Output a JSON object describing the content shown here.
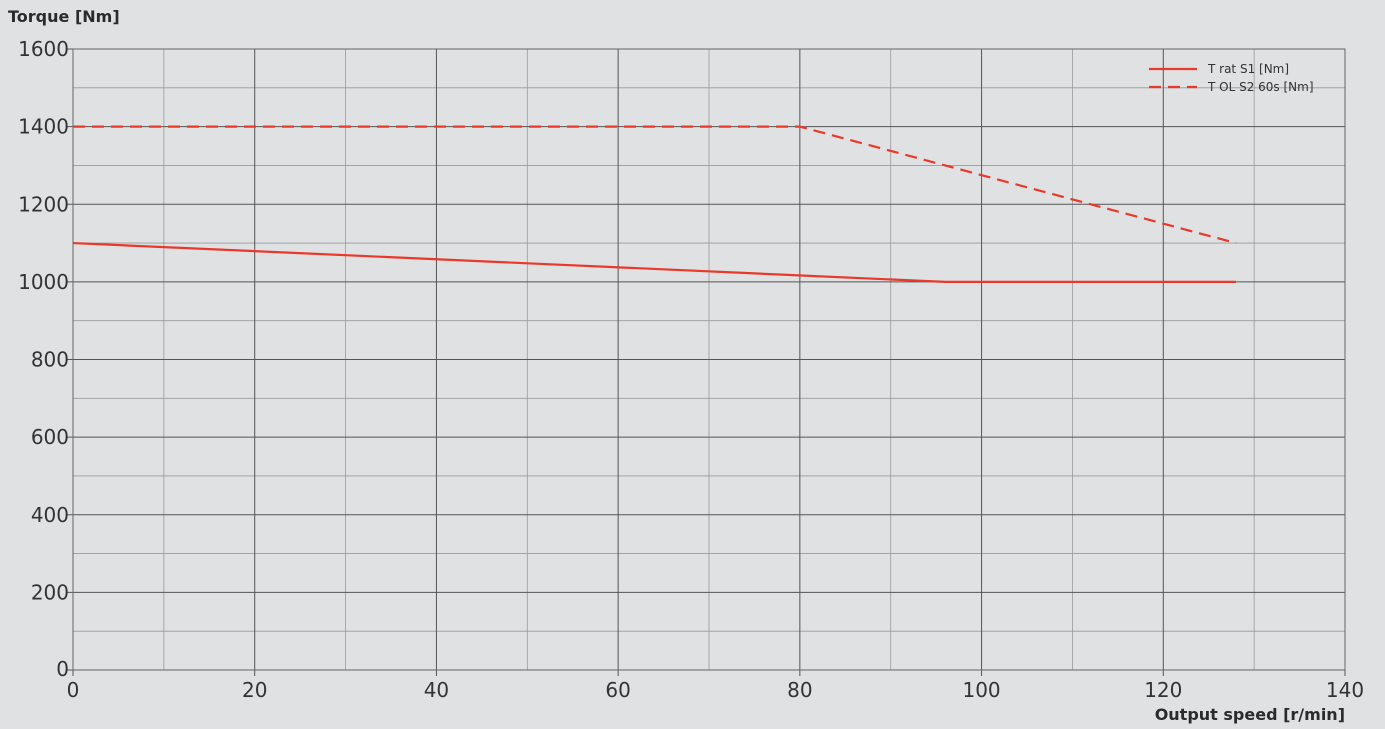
{
  "chart_data": {
    "type": "line",
    "title": "",
    "ylabel": "Torque [Nm]",
    "xlabel": "Output speed [r/min]",
    "xlim": [
      0,
      140
    ],
    "ylim": [
      0,
      1600
    ],
    "x_ticks": [
      0,
      20,
      40,
      60,
      80,
      100,
      120,
      140
    ],
    "y_ticks": [
      0,
      200,
      400,
      600,
      800,
      1000,
      1200,
      1400,
      1600
    ],
    "x_minor_step": 10,
    "y_minor_step": 100,
    "grid": true,
    "legend_position": "top-right",
    "series": [
      {
        "name": "T rat S1 [Nm]",
        "style": "solid",
        "color": "#e8392b",
        "x": [
          0,
          96,
          128
        ],
        "y": [
          1100,
          1000,
          1000
        ]
      },
      {
        "name": "T OL S2 60s [Nm]",
        "style": "dashed",
        "color": "#e8392b",
        "x": [
          0,
          80,
          128
        ],
        "y": [
          1400,
          1400,
          1100
        ]
      }
    ]
  }
}
